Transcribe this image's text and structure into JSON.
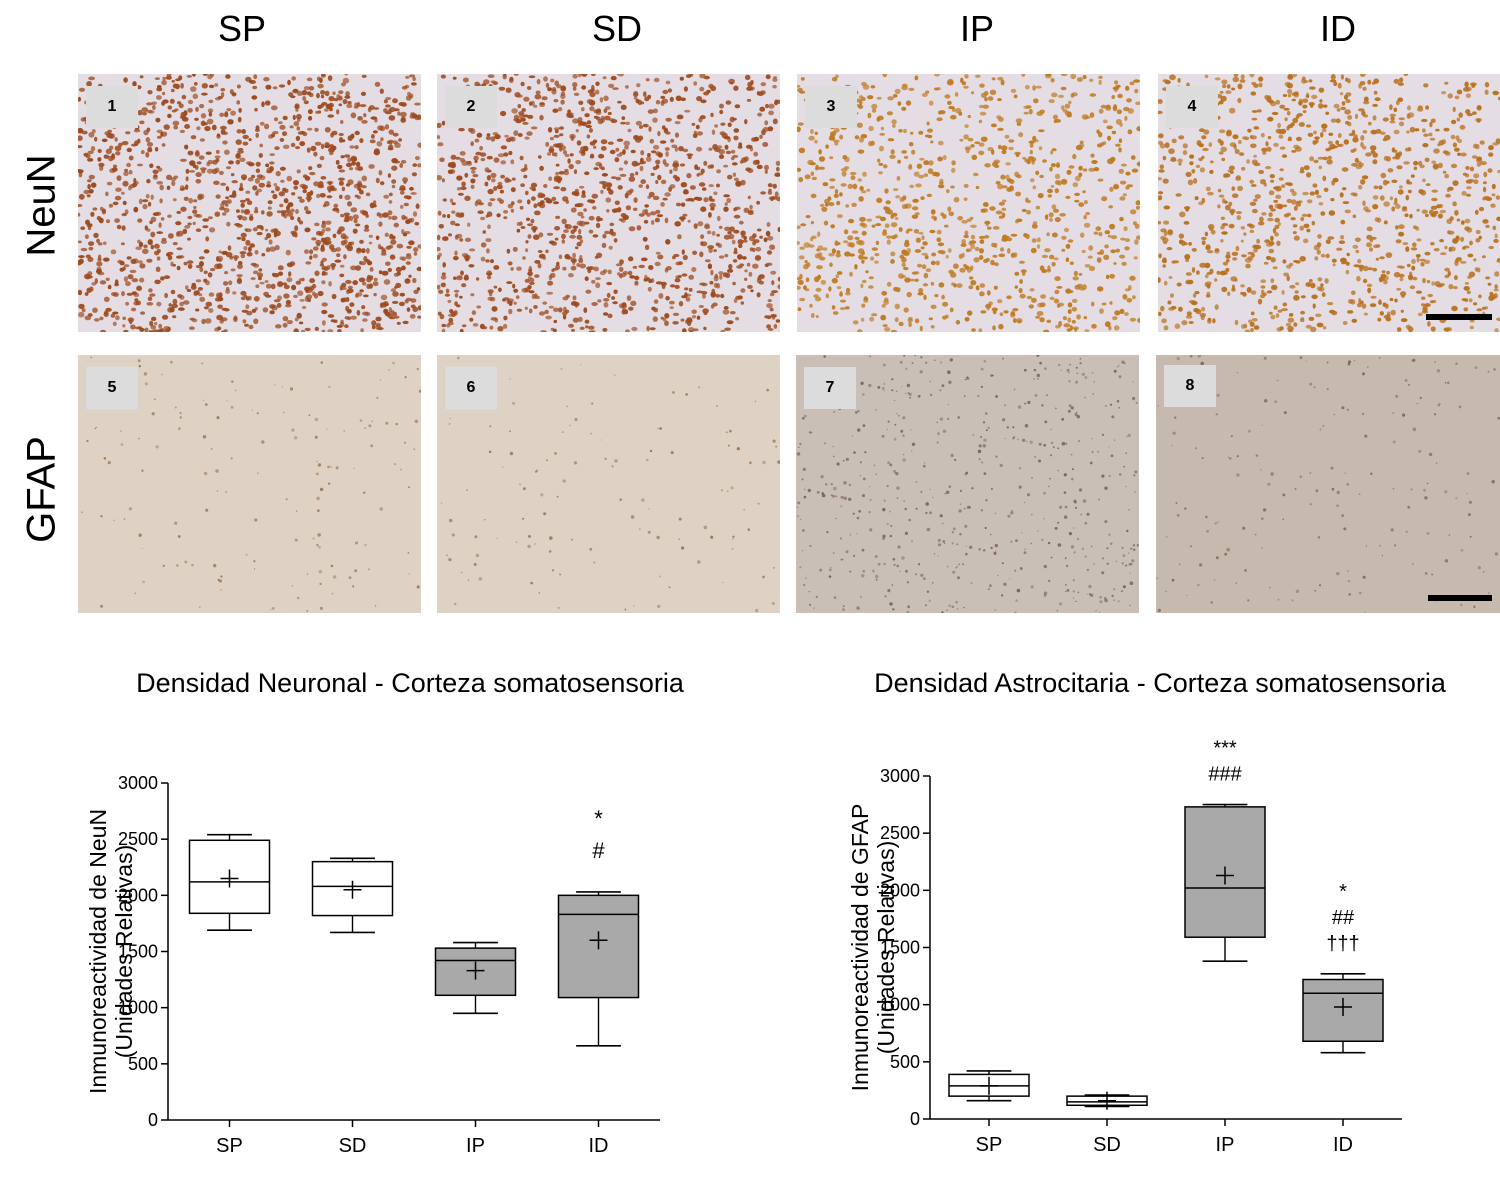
{
  "columns": [
    "SP",
    "SD",
    "IP",
    "ID"
  ],
  "rows": [
    "NeuN",
    "GFAP"
  ],
  "panels": [
    {
      "number": "1",
      "stain": "neun",
      "density": 0.62,
      "color": "#9c4a1e"
    },
    {
      "number": "2",
      "stain": "neun",
      "density": 0.55,
      "color": "#9e4b1f"
    },
    {
      "number": "3",
      "stain": "neun",
      "density": 0.42,
      "color": "#c07a22"
    },
    {
      "number": "4",
      "stain": "neun",
      "density": 0.48,
      "color": "#b9711f"
    },
    {
      "number": "5",
      "stain": "gfap",
      "density": 0.05,
      "color": "#8a5a35"
    },
    {
      "number": "6",
      "stain": "gfap",
      "density": 0.04,
      "color": "#8a5a35"
    },
    {
      "number": "7",
      "stain": "gfap",
      "density": 0.18,
      "color": "#6a4a3a"
    },
    {
      "number": "8",
      "stain": "gfap",
      "density": 0.06,
      "color": "#6d5448"
    }
  ],
  "chart_data": [
    {
      "type": "box",
      "title": "Densidad Neuronal - Corteza somatosensoria",
      "ylabel": "Inmunoreactividad de NeuN",
      "ylabel2": "(Unidades Relativas)",
      "categories": [
        "SP",
        "SD",
        "IP",
        "ID"
      ],
      "ylim": [
        0,
        3000
      ],
      "yticks": [
        0,
        500,
        1000,
        1500,
        2000,
        2500,
        3000
      ],
      "boxes": [
        {
          "min": 1690,
          "q1": 1840,
          "median": 2120,
          "q3": 2490,
          "max": 2540,
          "mean": 2150,
          "fill": "#ffffff"
        },
        {
          "min": 1670,
          "q1": 1820,
          "median": 2080,
          "q3": 2300,
          "max": 2330,
          "mean": 2050,
          "fill": "#ffffff"
        },
        {
          "min": 950,
          "q1": 1110,
          "median": 1420,
          "q3": 1530,
          "max": 1580,
          "mean": 1330,
          "fill": "#a9a9a9"
        },
        {
          "min": 660,
          "q1": 1090,
          "median": 1830,
          "q3": 2000,
          "max": 2030,
          "mean": 1600,
          "fill": "#a9a9a9"
        }
      ],
      "annotations": [
        {
          "category": "ID",
          "lines": [
            "*",
            "#"
          ]
        }
      ]
    },
    {
      "type": "box",
      "title": "Densidad Astrocitaria - Corteza somatosensoria",
      "ylabel": "Inmunoreactividad de GFAP",
      "ylabel2": "(Unidades Relativas)",
      "categories": [
        "SP",
        "SD",
        "IP",
        "ID"
      ],
      "ylim": [
        0,
        3000
      ],
      "yticks": [
        0,
        500,
        1000,
        1500,
        2000,
        2500,
        3000
      ],
      "boxes": [
        {
          "min": 160,
          "q1": 200,
          "median": 290,
          "q3": 390,
          "max": 420,
          "mean": 290,
          "fill": "#ffffff"
        },
        {
          "min": 110,
          "q1": 120,
          "median": 150,
          "q3": 200,
          "max": 210,
          "mean": 160,
          "fill": "#ffffff"
        },
        {
          "min": 1380,
          "q1": 1590,
          "median": 2020,
          "q3": 2730,
          "max": 2750,
          "mean": 2130,
          "fill": "#a9a9a9"
        },
        {
          "min": 580,
          "q1": 680,
          "median": 1100,
          "q3": 1220,
          "max": 1270,
          "mean": 980,
          "fill": "#a9a9a9"
        }
      ],
      "annotations": [
        {
          "category": "IP",
          "lines": [
            "***",
            "###"
          ]
        },
        {
          "category": "ID",
          "lines": [
            "*",
            "##",
            "†††"
          ]
        }
      ]
    }
  ]
}
